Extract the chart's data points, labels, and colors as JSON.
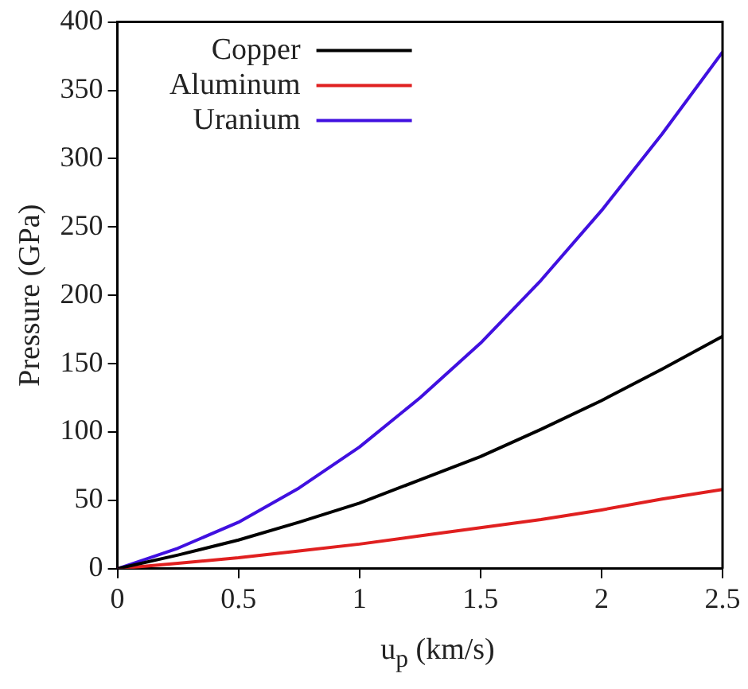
{
  "chart_data": {
    "type": "line",
    "xlabel": "u$_{p}$ (km/s)",
    "ylabel": "Pressure (GPa)",
    "x": [
      0,
      0.25,
      0.5,
      0.75,
      1,
      1.25,
      1.5,
      1.75,
      2,
      2.25,
      2.5
    ],
    "series": [
      {
        "name": "Copper",
        "color": "#000000",
        "values": [
          0,
          10,
          21,
          34,
          48,
          65,
          82,
          102,
          123,
          146,
          170
        ]
      },
      {
        "name": "Aluminum",
        "color": "#e02020",
        "values": [
          0,
          4,
          8,
          13,
          18,
          24,
          30,
          36,
          43,
          51,
          58
        ]
      },
      {
        "name": "Uranium",
        "color": "#4010e0",
        "values": [
          0,
          15,
          34,
          59,
          89,
          125,
          165,
          211,
          262,
          318,
          378
        ]
      }
    ],
    "xlim": [
      0,
      2.5
    ],
    "xticks": [
      0,
      0.5,
      1,
      1.5,
      2,
      2.5
    ],
    "ylim": [
      0,
      400
    ],
    "yticks": [
      0,
      50,
      100,
      150,
      200,
      250,
      300,
      350,
      400
    ],
    "grid": false,
    "legend": "top left",
    "marker": "none",
    "line_style": "solid"
  }
}
